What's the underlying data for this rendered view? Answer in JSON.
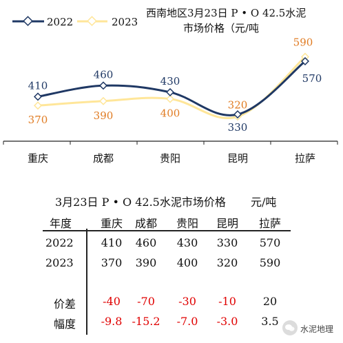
{
  "chart_data": {
    "type": "line",
    "title": "西南地区3月23日  P • O 42.5水泥",
    "subtitle": "市场价格（元/吨",
    "categories": [
      "重庆",
      "成都",
      "贵阳",
      "昆明",
      "拉萨"
    ],
    "series": [
      {
        "name": "2022",
        "values": [
          410,
          460,
          430,
          330,
          570
        ],
        "color": "#1f3864"
      },
      {
        "name": "2023",
        "values": [
          370,
          390,
          400,
          320,
          590
        ],
        "color": "#ffe699"
      }
    ],
    "label_colors": {
      "2022": "#1f3864",
      "2023": "#e07b22"
    },
    "legend_position": "top-left",
    "ylim": [
      240,
      660
    ],
    "grid": false
  },
  "table": {
    "title": "3月23日 P • O 42.5水泥市场价格",
    "unit": "元/吨",
    "header_label": "年度",
    "columns": [
      "重庆",
      "成都",
      "贵阳",
      "昆明",
      "拉萨"
    ],
    "rows": [
      {
        "label": "2022",
        "values": [
          "410",
          "460",
          "430",
          "330",
          "570"
        ]
      },
      {
        "label": "2023",
        "values": [
          "370",
          "390",
          "400",
          "320",
          "590"
        ]
      },
      {
        "label": "价差",
        "values": [
          "-40",
          "-70",
          "-30",
          "-10",
          "20"
        ]
      },
      {
        "label": "幅度",
        "values": [
          "-9.8",
          "-15.2",
          "-7.0",
          "-3.0",
          "3.5"
        ]
      }
    ],
    "negative_color": "#e00000"
  },
  "watermark": {
    "text": "水泥地理",
    "icon": "wechat-icon"
  }
}
